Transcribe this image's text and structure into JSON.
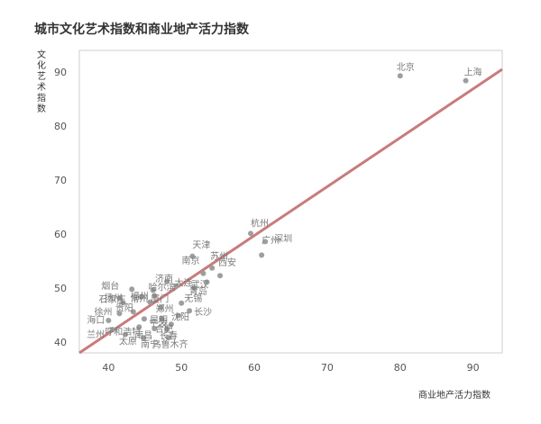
{
  "chart_data": {
    "type": "scatter",
    "title": "城市文化艺术指数和商业地产活力指数",
    "xlabel": "商业地产活力指数",
    "ylabel": "文化艺术指数",
    "xlim": [
      36,
      94
    ],
    "ylim": [
      38,
      94
    ],
    "xticks": [
      "40",
      "50",
      "60",
      "70",
      "80",
      "90"
    ],
    "yticks": [
      "40",
      "50",
      "60",
      "70",
      "80",
      "90"
    ],
    "grid": false,
    "trendline": {
      "x": [
        36,
        94
      ],
      "y": [
        38.0,
        90.5
      ],
      "color": "#c97b7b"
    },
    "point_color": "#9e9e9e",
    "points": [
      {
        "name": "北京",
        "x": 80.0,
        "y": 89.3
      },
      {
        "name": "上海",
        "x": 89.0,
        "y": 88.4
      },
      {
        "name": "杭州",
        "x": 59.5,
        "y": 60.1
      },
      {
        "name": "深圳",
        "x": 61.5,
        "y": 58.6
      },
      {
        "name": "广州",
        "x": 61.0,
        "y": 56.1
      },
      {
        "name": "天津",
        "x": 51.5,
        "y": 55.9
      },
      {
        "name": "苏州",
        "x": 54.2,
        "y": 53.7
      },
      {
        "name": "西安",
        "x": 55.3,
        "y": 52.3
      },
      {
        "name": "南京",
        "x": 53.0,
        "y": 52.7
      },
      {
        "name": "武汉",
        "x": 53.5,
        "y": 51.1
      },
      {
        "name": "济南",
        "x": 48.0,
        "y": 51.2
      },
      {
        "name": "大连",
        "x": 49.3,
        "y": 50.4
      },
      {
        "name": "青岛",
        "x": 51.8,
        "y": 50.0
      },
      {
        "name": "哈尔滨",
        "x": 46.1,
        "y": 49.6
      },
      {
        "name": "烟台",
        "x": 43.2,
        "y": 49.8
      },
      {
        "name": "厦门",
        "x": 46.3,
        "y": 48.6
      },
      {
        "name": "福州",
        "x": 44.5,
        "y": 48.4
      },
      {
        "name": "扬州",
        "x": 41.5,
        "y": 48.1
      },
      {
        "name": "常州",
        "x": 45.7,
        "y": 47.4
      },
      {
        "name": "无锡",
        "x": 50.0,
        "y": 47.2
      },
      {
        "name": "石家庄",
        "x": 42.0,
        "y": 47.3
      },
      {
        "name": "郑州",
        "x": 47.2,
        "y": 46.4
      },
      {
        "name": "长沙",
        "x": 51.1,
        "y": 45.8
      },
      {
        "name": "贵阳",
        "x": 43.4,
        "y": 45.6
      },
      {
        "name": "徐州",
        "x": 41.5,
        "y": 45.3
      },
      {
        "name": "沈阳",
        "x": 49.6,
        "y": 44.9
      },
      {
        "name": "宁波",
        "x": 47.3,
        "y": 44.4
      },
      {
        "name": "海口",
        "x": 40.0,
        "y": 44.0
      },
      {
        "name": "昆明",
        "x": 44.9,
        "y": 44.3
      },
      {
        "name": "合肥",
        "x": 48.6,
        "y": 43.3
      },
      {
        "name": "兰州",
        "x": 40.6,
        "y": 42.3
      },
      {
        "name": "呼和浩特",
        "x": 44.2,
        "y": 42.8
      },
      {
        "name": "南昌",
        "x": 46.3,
        "y": 42.5
      },
      {
        "name": "长春",
        "x": 48.0,
        "y": 42.4
      },
      {
        "name": "太原",
        "x": 42.3,
        "y": 41.4
      },
      {
        "name": "南宁",
        "x": 44.8,
        "y": 40.8
      },
      {
        "name": "乌鲁木齐",
        "x": 48.2,
        "y": 40.8
      }
    ]
  }
}
